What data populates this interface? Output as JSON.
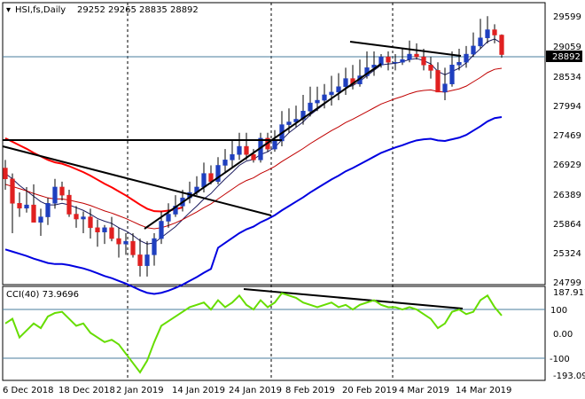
{
  "header": {
    "symbol": "HSI,fs,Daily",
    "ohlc": "29252 29265 28835 28892"
  },
  "price_pane": {
    "price_ticks": [
      "29599",
      "29059",
      "28534",
      "27994",
      "27469",
      "26929",
      "26389",
      "25864",
      "25324",
      "24799"
    ],
    "current_price_label": "28892"
  },
  "cci_pane": {
    "title": "CCI(40) 73.9696",
    "ticks": [
      "187.9173",
      "100",
      "0.00",
      "-100",
      "-193.097"
    ]
  },
  "date_labels": [
    "6 Dec 2018",
    "18 Dec 2018",
    "2 Jan 2019",
    "14 Jan 2019",
    "24 Jan 2019",
    "8 Feb 2019",
    "20 Feb 2019",
    "4 Mar 2019",
    "14 Mar 2019"
  ],
  "colors": {
    "bull": "#1f3fbf",
    "bear": "#e02020",
    "ma_fast": "#1a1a5e",
    "ma_slow": "#c00000",
    "kumo": "#0000e0",
    "kijun_red": "#ff0000",
    "cci_line": "#66dd00",
    "trendline": "#000000",
    "grid_line": "#4a7c9e",
    "price_box_bg": "#000000",
    "price_box_text": "#ffffff"
  },
  "chart_data": [
    {
      "type": "candlestick",
      "title": "HSI,fs,Daily 29252 29265 28835 28892",
      "xlabel": "",
      "ylabel": "",
      "ylim": [
        24700,
        29800
      ],
      "x": [
        "2018-12-03",
        "2018-12-04",
        "2018-12-05",
        "2018-12-06",
        "2018-12-07",
        "2018-12-10",
        "2018-12-11",
        "2018-12-12",
        "2018-12-13",
        "2018-12-14",
        "2018-12-17",
        "2018-12-18",
        "2018-12-19",
        "2018-12-20",
        "2018-12-21",
        "2018-12-24",
        "2018-12-27",
        "2018-12-28",
        "2018-12-31",
        "2019-01-02",
        "2019-01-03",
        "2019-01-04",
        "2019-01-07",
        "2019-01-08",
        "2019-01-09",
        "2019-01-10",
        "2019-01-11",
        "2019-01-14",
        "2019-01-15",
        "2019-01-16",
        "2019-01-17",
        "2019-01-18",
        "2019-01-21",
        "2019-01-22",
        "2019-01-23",
        "2019-01-24",
        "2019-01-25",
        "2019-01-28",
        "2019-01-29",
        "2019-01-30",
        "2019-01-31",
        "2019-02-01",
        "2019-02-04",
        "2019-02-08",
        "2019-02-11",
        "2019-02-12",
        "2019-02-13",
        "2019-02-14",
        "2019-02-15",
        "2019-02-18",
        "2019-02-19",
        "2019-02-20",
        "2019-02-21",
        "2019-02-22",
        "2019-02-25",
        "2019-02-26",
        "2019-02-27",
        "2019-02-28",
        "2019-03-01",
        "2019-03-04",
        "2019-03-05",
        "2019-03-06",
        "2019-03-07",
        "2019-03-08",
        "2019-03-11",
        "2019-03-12",
        "2019-03-13",
        "2019-03-14",
        "2019-03-15",
        "2019-03-18",
        "2019-03-19"
      ],
      "series": [
        {
          "open": [
            26800,
            26600,
            26150,
            26060,
            26120,
            25800,
            25900,
            26150,
            26450,
            26300,
            25950,
            25860,
            25900,
            25700,
            25620,
            25700,
            25500,
            25400,
            25450,
            25200,
            25000,
            25200,
            25500,
            25820,
            25950,
            26100,
            26250,
            26350,
            26450,
            26700,
            26550,
            26850,
            26950,
            27050,
            27200,
            27050,
            26950,
            27350,
            27150,
            27300,
            27600,
            27650,
            27700,
            27850,
            28000,
            28050,
            28150,
            28200,
            28300,
            28450,
            28350,
            28500,
            28650,
            28700,
            28850,
            28750,
            28750,
            28800,
            28900,
            28850,
            28700,
            28600,
            28200,
            28350,
            28700,
            28750,
            28900,
            29050,
            29200,
            29350,
            29252
          ],
          "high": [
            26950,
            26700,
            26350,
            26450,
            26500,
            26050,
            26250,
            26600,
            26550,
            26400,
            26100,
            26000,
            26050,
            25850,
            25750,
            25900,
            25700,
            25600,
            25600,
            25500,
            25450,
            25600,
            26000,
            26150,
            26300,
            26400,
            26550,
            26650,
            26900,
            26850,
            27000,
            27150,
            27300,
            27450,
            27450,
            27150,
            27450,
            27450,
            27500,
            27850,
            27900,
            27950,
            28150,
            28300,
            28300,
            28350,
            28500,
            28550,
            28650,
            28700,
            28800,
            28950,
            28950,
            28900,
            28950,
            28900,
            29000,
            29150,
            29100,
            29000,
            28850,
            28750,
            28650,
            28950,
            29000,
            29050,
            29300,
            29550,
            29600,
            29450,
            29265
          ],
          "low": [
            26400,
            25600,
            25900,
            25980,
            25800,
            25550,
            25750,
            26050,
            26200,
            25900,
            25700,
            25600,
            25500,
            25350,
            25400,
            25450,
            25150,
            25200,
            25150,
            24800,
            24800,
            25000,
            25400,
            25700,
            25900,
            26000,
            26150,
            26300,
            26350,
            26500,
            26500,
            26700,
            26800,
            26950,
            26950,
            26900,
            26900,
            27100,
            27100,
            27200,
            27450,
            27550,
            27600,
            27750,
            27850,
            27900,
            27950,
            28050,
            28150,
            28250,
            28300,
            28450,
            28500,
            28650,
            28600,
            28600,
            28700,
            28750,
            28800,
            28600,
            28450,
            28200,
            28050,
            28300,
            28600,
            28650,
            28850,
            29000,
            29100,
            29100,
            28835
          ],
          "close": [
            26600,
            26150,
            26060,
            26120,
            25800,
            25900,
            26150,
            26450,
            26300,
            25950,
            25860,
            25900,
            25700,
            25620,
            25700,
            25500,
            25400,
            25450,
            25200,
            25000,
            25200,
            25500,
            25820,
            25950,
            26100,
            26250,
            26350,
            26450,
            26700,
            26550,
            26850,
            26950,
            27050,
            27200,
            27050,
            26950,
            27350,
            27150,
            27300,
            27600,
            27650,
            27700,
            27850,
            28000,
            28050,
            28150,
            28200,
            28300,
            28450,
            28350,
            28500,
            28650,
            28700,
            28850,
            28750,
            28750,
            28800,
            28900,
            28850,
            28700,
            28600,
            28200,
            28350,
            28700,
            28750,
            28900,
            29050,
            29200,
            29350,
            29252,
            28892
          ]
        },
        {
          "name": "",
          "values": [
            26700,
            26600,
            26480,
            26380,
            26280,
            26180,
            26120,
            26120,
            26150,
            26120,
            26070,
            26020,
            25950,
            25870,
            25820,
            25780,
            25700,
            25640,
            25560,
            25460,
            25400,
            25420,
            25520,
            25620,
            25720,
            25850,
            25980,
            26100,
            26230,
            26330,
            26470,
            26600,
            26720,
            26850,
            26930,
            26960,
            27050,
            27100,
            27180,
            27320,
            27450,
            27550,
            27650,
            27780,
            27880,
            27980,
            28080,
            28170,
            28280,
            28320,
            28400,
            28500,
            28600,
            28700,
            28720,
            28730,
            28760,
            28800,
            28820,
            28780,
            28720,
            28580,
            28520,
            28580,
            28640,
            28740,
            28880,
            29000,
            29130,
            29180,
            29100
          ]
        },
        {
          "name": "",
          "values": [
            26500,
            26460,
            26420,
            26380,
            26330,
            26290,
            26250,
            26230,
            26230,
            26210,
            26180,
            26150,
            26110,
            26060,
            26010,
            25970,
            25920,
            25870,
            25810,
            25750,
            25700,
            25680,
            25700,
            25740,
            25790,
            25850,
            25920,
            25990,
            26070,
            26140,
            26230,
            26320,
            26410,
            26500,
            26570,
            26620,
            26700,
            26760,
            26830,
            26920,
            27000,
            27080,
            27160,
            27250,
            27330,
            27410,
            27490,
            27560,
            27640,
            27700,
            27770,
            27840,
            27910,
            27980,
            28030,
            28080,
            28120,
            28170,
            28210,
            28230,
            28240,
            28210,
            28200,
            28230,
            28260,
            28310,
            28390,
            28470,
            28560,
            28620,
            28640
          ]
        }
      ]
    },
    {
      "type": "line",
      "title": "CCI(40) 73.9696",
      "xlabel": "",
      "ylabel": "",
      "ylim": [
        -193.097,
        187.9173
      ],
      "series": [
        {
          "name": "CCI(40)",
          "values": [
            40,
            60,
            -20,
            10,
            40,
            20,
            70,
            85,
            90,
            60,
            30,
            40,
            0,
            -20,
            -40,
            -30,
            -50,
            -90,
            -130,
            -170,
            -120,
            -40,
            30,
            50,
            70,
            90,
            110,
            120,
            130,
            100,
            140,
            110,
            130,
            160,
            120,
            100,
            140,
            110,
            130,
            170,
            160,
            150,
            130,
            120,
            110,
            120,
            130,
            110,
            120,
            100,
            120,
            130,
            140,
            120,
            110,
            110,
            100,
            110,
            100,
            80,
            60,
            20,
            40,
            90,
            100,
            80,
            90,
            140,
            160,
            110,
            73.9696
          ]
        }
      ]
    }
  ]
}
